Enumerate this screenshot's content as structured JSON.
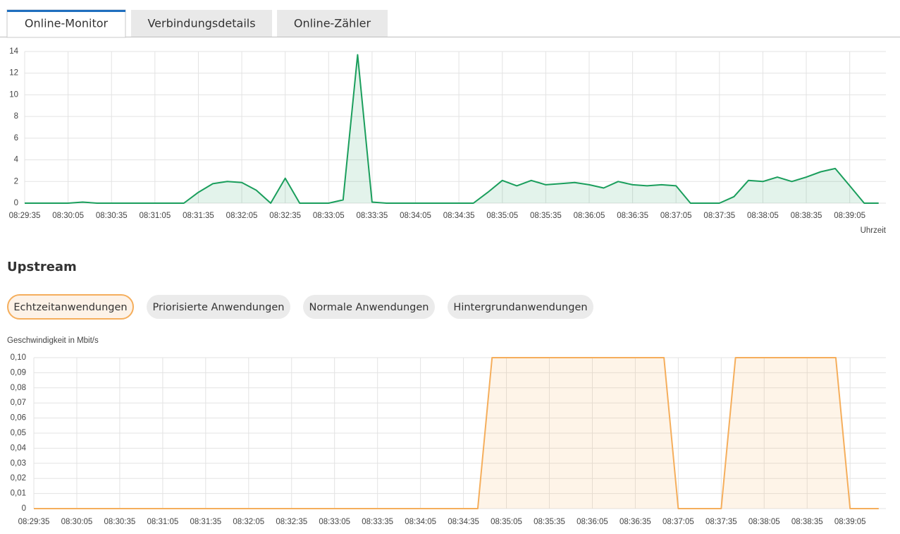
{
  "tabs": {
    "items": [
      "Online-Monitor",
      "Verbindungsdetails",
      "Online-Zähler"
    ],
    "active": 0
  },
  "section_title": "Upstream",
  "filters": {
    "items": [
      "Echtzeitanwendungen",
      "Priorisierte Anwendungen",
      "Normale Anwendungen",
      "Hintergrundanwendungen"
    ],
    "active": 0
  },
  "chart_data": [
    {
      "type": "line",
      "area": true,
      "grid": true,
      "x_label": "Uhrzeit",
      "x": [
        "08:29:35",
        "08:29:45",
        "08:29:55",
        "08:30:05",
        "08:30:15",
        "08:30:25",
        "08:30:35",
        "08:30:45",
        "08:30:55",
        "08:31:05",
        "08:31:15",
        "08:31:25",
        "08:31:35",
        "08:31:45",
        "08:31:55",
        "08:32:05",
        "08:32:15",
        "08:32:25",
        "08:32:35",
        "08:32:45",
        "08:32:55",
        "08:33:05",
        "08:33:15",
        "08:33:25",
        "08:33:35",
        "08:33:45",
        "08:33:55",
        "08:34:05",
        "08:34:15",
        "08:34:25",
        "08:34:35",
        "08:34:45",
        "08:34:55",
        "08:35:05",
        "08:35:15",
        "08:35:25",
        "08:35:35",
        "08:35:45",
        "08:35:55",
        "08:36:05",
        "08:36:15",
        "08:36:25",
        "08:36:35",
        "08:36:45",
        "08:36:55",
        "08:37:05",
        "08:37:15",
        "08:37:25",
        "08:37:35",
        "08:37:45",
        "08:37:55",
        "08:38:05",
        "08:38:15",
        "08:38:25",
        "08:38:35",
        "08:38:45",
        "08:38:55",
        "08:39:05",
        "08:39:15",
        "08:39:25"
      ],
      "series": [
        {
          "color": "#1a9e5c",
          "fill": "rgba(26,158,92,0.12)",
          "values": [
            0,
            0,
            0,
            0,
            0.1,
            0,
            0,
            0,
            0,
            0,
            0,
            0,
            1,
            1.8,
            2,
            1.9,
            1.2,
            0,
            2.3,
            0,
            0,
            0,
            0.3,
            13.7,
            0.1,
            0,
            0,
            0,
            0,
            0,
            0,
            0,
            1,
            2.1,
            1.6,
            2.1,
            1.7,
            1.8,
            1.9,
            1.7,
            1.4,
            2,
            1.7,
            1.6,
            1.7,
            1.6,
            0,
            0,
            0,
            0.6,
            2.1,
            2,
            2.4,
            2,
            2.4,
            2.9,
            3.2,
            1.6,
            0,
            0
          ]
        }
      ],
      "xlim": [
        "08:29:35",
        "08:39:30"
      ],
      "xticks": [
        "08:29:35",
        "08:30:05",
        "08:30:35",
        "08:31:05",
        "08:31:35",
        "08:32:05",
        "08:32:35",
        "08:33:05",
        "08:33:35",
        "08:34:05",
        "08:34:35",
        "08:35:05",
        "08:35:35",
        "08:36:05",
        "08:36:35",
        "08:37:05",
        "08:37:35",
        "08:38:05",
        "08:38:35",
        "08:39:05"
      ],
      "ylim": [
        0,
        14
      ],
      "yticks": [
        0,
        2,
        4,
        6,
        8,
        10,
        12,
        14
      ]
    },
    {
      "type": "line",
      "area": true,
      "grid": true,
      "y_label": "Geschwindigkeit in Mbit/s",
      "x": [
        "08:29:35",
        "08:29:45",
        "08:29:55",
        "08:30:05",
        "08:30:15",
        "08:30:25",
        "08:30:35",
        "08:30:45",
        "08:30:55",
        "08:31:05",
        "08:31:15",
        "08:31:25",
        "08:31:35",
        "08:31:45",
        "08:31:55",
        "08:32:05",
        "08:32:15",
        "08:32:25",
        "08:32:35",
        "08:32:45",
        "08:32:55",
        "08:33:05",
        "08:33:15",
        "08:33:25",
        "08:33:35",
        "08:33:45",
        "08:33:55",
        "08:34:05",
        "08:34:15",
        "08:34:25",
        "08:34:35",
        "08:34:45",
        "08:34:55",
        "08:35:05",
        "08:35:15",
        "08:35:25",
        "08:35:35",
        "08:35:45",
        "08:35:55",
        "08:36:05",
        "08:36:15",
        "08:36:25",
        "08:36:35",
        "08:36:45",
        "08:36:55",
        "08:37:05",
        "08:37:15",
        "08:37:25",
        "08:37:35",
        "08:37:45",
        "08:37:55",
        "08:38:05",
        "08:38:15",
        "08:38:25",
        "08:38:35",
        "08:38:45",
        "08:38:55",
        "08:39:05",
        "08:39:15",
        "08:39:25"
      ],
      "series": [
        {
          "color": "#f5ae5c",
          "fill": "rgba(245,174,92,0.14)",
          "values": [
            0,
            0,
            0,
            0,
            0,
            0,
            0,
            0,
            0,
            0,
            0,
            0,
            0,
            0,
            0,
            0,
            0,
            0,
            0,
            0,
            0,
            0,
            0,
            0,
            0,
            0,
            0,
            0,
            0,
            0,
            0,
            0,
            0.1,
            0.1,
            0.1,
            0.1,
            0.1,
            0.1,
            0.1,
            0.1,
            0.1,
            0.1,
            0.1,
            0.1,
            0.1,
            0,
            0,
            0,
            0,
            0.1,
            0.1,
            0.1,
            0.1,
            0.1,
            0.1,
            0.1,
            0.1,
            0,
            0,
            0
          ]
        }
      ],
      "xlim": [
        "08:29:35",
        "08:39:30"
      ],
      "xticks": [
        "08:29:35",
        "08:30:05",
        "08:30:35",
        "08:31:05",
        "08:31:35",
        "08:32:05",
        "08:32:35",
        "08:33:05",
        "08:33:35",
        "08:34:05",
        "08:34:35",
        "08:35:05",
        "08:35:35",
        "08:36:05",
        "08:36:35",
        "08:37:05",
        "08:37:35",
        "08:38:05",
        "08:38:35",
        "08:39:05"
      ],
      "ylim": [
        0,
        0.1
      ],
      "yticks": [
        0,
        {
          "value": 0.01,
          "label": "0,01"
        },
        {
          "value": 0.02,
          "label": "0,02"
        },
        {
          "value": 0.03,
          "label": "0,03"
        },
        {
          "value": 0.04,
          "label": "0,04"
        },
        {
          "value": 0.05,
          "label": "0,05"
        },
        {
          "value": 0.06,
          "label": "0,06"
        },
        {
          "value": 0.07,
          "label": "0,07"
        },
        {
          "value": 0.08,
          "label": "0,08"
        },
        {
          "value": 0.09,
          "label": "0,09"
        },
        {
          "value": 0.1,
          "label": "0,10"
        }
      ]
    }
  ]
}
